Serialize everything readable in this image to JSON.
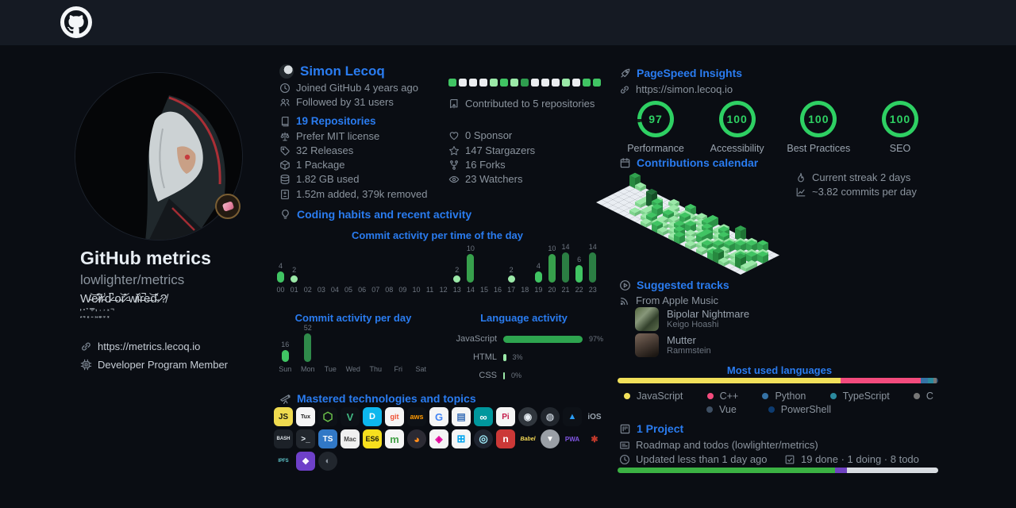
{
  "header": {
    "logo": "github-octocat"
  },
  "profile": {
    "title": "GitHub metrics",
    "subtitle": "lowlighter/metrics",
    "bio": "W̴͝e̷̽i̸͐r̴̾d̷̚ ̶o̴͝r̷̽ ̵w̸͐i̴̾r̵̚e̶͝d̴̽ ̷?̸",
    "bio_glitch": "͎̺̽͒ ̠͉̊ ̻̗̉ ͍̿̐ ̤͖̓͑ ̬̳͗ ̼͙͐ ͓̦̽ ̚",
    "website": "https://metrics.lecoq.io",
    "membership": "Developer Program Member"
  },
  "user": {
    "name": "Simon Lecoq",
    "joined": "Joined GitHub 4 years ago",
    "followers": "Followed by 31 users",
    "repositories": "19 Repositories",
    "license": "Prefer MIT license",
    "releases": "32 Releases",
    "packages": "1 Package",
    "storage": "1.82 GB used",
    "lines": "1.52m added, 379k removed",
    "contributed": "Contributed to 5 repositories",
    "sponsors": "0 Sponsor",
    "stargazers": "147 Stargazers",
    "forks": "16 Forks",
    "watchers": "23 Watchers",
    "squares": [
      "#40c463",
      "#ebedf0",
      "#ebedf0",
      "#ebedf0",
      "#9be9a8",
      "#40c463",
      "#9be9a8",
      "#2f9e4f",
      "#ebedf0",
      "#ebedf0",
      "#ebedf0",
      "#9be9a8",
      "#ebedf0",
      "#40c463",
      "#40c463"
    ]
  },
  "habits": {
    "title": "Coding habits and recent activity"
  },
  "chart_data": [
    {
      "type": "bar",
      "title": "Commit activity per time of the day",
      "categories": [
        "00",
        "01",
        "02",
        "03",
        "04",
        "05",
        "06",
        "07",
        "08",
        "09",
        "10",
        "11",
        "12",
        "13",
        "14",
        "15",
        "16",
        "17",
        "18",
        "19",
        "20",
        "21",
        "22",
        "23"
      ],
      "values": [
        4,
        2,
        0,
        0,
        0,
        0,
        0,
        0,
        0,
        0,
        0,
        0,
        0,
        2,
        10,
        0,
        0,
        2,
        0,
        4,
        10,
        14,
        6,
        14
      ]
    },
    {
      "type": "bar",
      "title": "Commit activity per day",
      "categories": [
        "Sun",
        "Mon",
        "Tue",
        "Wed",
        "Thu",
        "Fri",
        "Sat"
      ],
      "values": [
        16,
        52,
        0,
        0,
        0,
        0,
        0
      ]
    },
    {
      "type": "bar",
      "title": "Language activity",
      "categories": [
        "JavaScript",
        "HTML",
        "CSS"
      ],
      "values": [
        97,
        3,
        0
      ],
      "unit": "%"
    }
  ],
  "tech": {
    "title": "Mastered technologies and topics",
    "rows": [
      [
        {
          "n": "javascript",
          "t": "JS",
          "bg": "#f0db4f",
          "fg": "#1b1b10",
          "fs": 10
        },
        {
          "n": "linux",
          "t": "Tux",
          "bg": "#f5f5f5",
          "fg": "#222222",
          "fs": 7
        },
        {
          "n": "nodejs",
          "t": "⬡",
          "bg": "#0d1117",
          "fg": "#6cc24a",
          "fs": 15
        },
        {
          "n": "vuejs",
          "t": "V",
          "bg": "#0d1117",
          "fg": "#41b883",
          "fs": 13
        },
        {
          "n": "docker",
          "t": "D",
          "bg": "#0db7ed",
          "fg": "#ffffff",
          "fs": 11
        },
        {
          "n": "git",
          "t": "git",
          "bg": "#f5f5f5",
          "fg": "#f05033",
          "fs": 9
        },
        {
          "n": "aws",
          "t": "aws",
          "bg": "#0d1117",
          "fg": "#ff9900",
          "fs": 9
        },
        {
          "n": "google",
          "t": "G",
          "bg": "#f5f5f5",
          "fg": "#4285f4",
          "fs": 13
        },
        {
          "n": "database",
          "t": "▤",
          "bg": "#f5f5f5",
          "fg": "#3b6fb6",
          "fs": 12
        },
        {
          "n": "arduino",
          "t": "∞",
          "bg": "#00979d",
          "fg": "#ffffff",
          "fs": 13
        },
        {
          "n": "raspberry-pi",
          "t": "Pi",
          "bg": "#f5f5f5",
          "fg": "#c51a4a",
          "fs": 10
        },
        {
          "n": "github",
          "t": "◉",
          "bg": "#30363d",
          "fg": "#e6edf3",
          "fs": 12,
          "round": true
        },
        {
          "n": "dark-ring",
          "t": "◍",
          "bg": "#21262d",
          "fg": "#aeb6bf",
          "fs": 12,
          "round": true
        },
        {
          "n": "azure",
          "t": "▲",
          "bg": "#0d1117",
          "fg": "#2a9df4",
          "fs": 11
        },
        {
          "n": "ios",
          "t": "iOS",
          "bg": "transparent",
          "fg": "#9aa4af",
          "fs": 10
        }
      ],
      [
        {
          "n": "bash",
          "t": "BASH",
          "bg": "#1c2128",
          "fg": "#dfe5ea",
          "fs": 6
        },
        {
          "n": "shell",
          "t": ">_",
          "bg": "#21262d",
          "fg": "#e6edf3",
          "fs": 10
        },
        {
          "n": "typescript",
          "t": "TS",
          "bg": "#3178c6",
          "fg": "#ffffff",
          "fs": 10
        },
        {
          "n": "macos",
          "t": "Mac",
          "bg": "#f0f0f0",
          "fg": "#444444",
          "fs": 8
        },
        {
          "n": "es6",
          "t": "ES6",
          "bg": "#f7df1e",
          "fg": "#1b1b10",
          "fs": 9
        },
        {
          "n": "mongodb",
          "t": "m",
          "bg": "#f5f5f5",
          "fg": "#43a047",
          "fs": 13
        },
        {
          "n": "firefox",
          "t": "◕",
          "bg": "#2b2a33",
          "fg": "#ff8c1a",
          "fs": 13,
          "round": true
        },
        {
          "n": "graphql",
          "t": "◈",
          "bg": "#f5f5f5",
          "fg": "#e10098",
          "fs": 12
        },
        {
          "n": "windows",
          "t": "⊞",
          "bg": "#f5f5f5",
          "fg": "#00a4ef",
          "fs": 13
        },
        {
          "n": "electron",
          "t": "◎",
          "bg": "#1f2430",
          "fg": "#9feaf9",
          "fs": 13,
          "round": true
        },
        {
          "n": "npm",
          "t": "n",
          "bg": "#cb3837",
          "fg": "#ffffff",
          "fs": 12
        },
        {
          "n": "babel",
          "t": "Babel",
          "bg": "transparent",
          "fg": "#f5da55",
          "fs": 7,
          "italic": true
        },
        {
          "n": "vercel",
          "t": "▼",
          "bg": "#9a9fa6",
          "fg": "#ffffff",
          "fs": 10,
          "round": true
        },
        {
          "n": "pwa",
          "t": "PWA",
          "bg": "transparent",
          "fg": "#8257e6",
          "fs": 8
        },
        {
          "n": "rust-crab",
          "t": "✱",
          "bg": "transparent",
          "fg": "#c0392b",
          "fs": 11
        }
      ],
      [
        {
          "n": "ipfs",
          "t": "IPFS",
          "bg": "transparent",
          "fg": "#5fc7cd",
          "fs": 6
        },
        {
          "n": "purple-app",
          "t": "❖",
          "bg": "#6e40c9",
          "fg": "#ffffff",
          "fs": 11
        },
        {
          "n": "dark-swirl",
          "t": "◐",
          "bg": "#21262d",
          "fg": "#8b949e",
          "fs": 11,
          "round": true
        }
      ]
    ]
  },
  "pagespeed": {
    "title": "PageSpeed Insights",
    "url": "https://simon.lecoq.io",
    "scores": [
      {
        "value": 97,
        "label": "Performance"
      },
      {
        "value": 100,
        "label": "Accessibility"
      },
      {
        "value": 100,
        "label": "Best Practices"
      },
      {
        "value": 100,
        "label": "SEO"
      }
    ]
  },
  "calendar": {
    "title": "Contributions calendar",
    "streak": "Current streak 2 days",
    "average": "~3.82 commits per day",
    "weeks": [
      "3000000",
      "1000000",
      "0000000",
      "0000000",
      "0011000",
      "0140010",
      "0021100",
      "1002010",
      "0110021",
      "0012110",
      "2101012",
      "0120101",
      "1011210",
      "0102021",
      "2210102",
      "0021010",
      "1102201",
      "0210110",
      "0021021",
      "3010210",
      "0102102",
      "1020013",
      "0201101",
      "2010210",
      "0112030",
      "0020110"
    ]
  },
  "music": {
    "title": "Suggested tracks",
    "source": "From Apple Music",
    "tracks": [
      {
        "title": "Bipolar Nightmare",
        "artist": "Keigo Hoashi"
      },
      {
        "title": "Mutter",
        "artist": "Rammstein"
      }
    ]
  },
  "languages": {
    "title": "Most used languages",
    "segments": [
      {
        "name": "JavaScript",
        "color": "#f1e05a",
        "pct": 69.5
      },
      {
        "name": "C++",
        "color": "#f34b7d",
        "pct": 25
      },
      {
        "name": "Python",
        "color": "#3572A5",
        "pct": 2.4
      },
      {
        "name": "TypeScript",
        "color": "#2b8a9e",
        "pct": 1.6
      },
      {
        "name": "C",
        "color": "#767676",
        "pct": 1
      },
      {
        "name": "Vue",
        "color": "#3e4f63",
        "pct": 0.3
      },
      {
        "name": "PowerShell",
        "color": "#0d3b70",
        "pct": 0.2
      }
    ]
  },
  "project": {
    "title": "1 Project",
    "name": "Roadmap and todos (lowlighter/metrics)",
    "updated": "Updated less than 1 day ago",
    "stats": "19 done · 1 doing · 8 todo",
    "bar": [
      {
        "color": "#3bb143",
        "pct": 67.9
      },
      {
        "color": "#6f42c1",
        "pct": 3.6
      },
      {
        "color": "#d8dce1",
        "pct": 28.5
      }
    ]
  }
}
